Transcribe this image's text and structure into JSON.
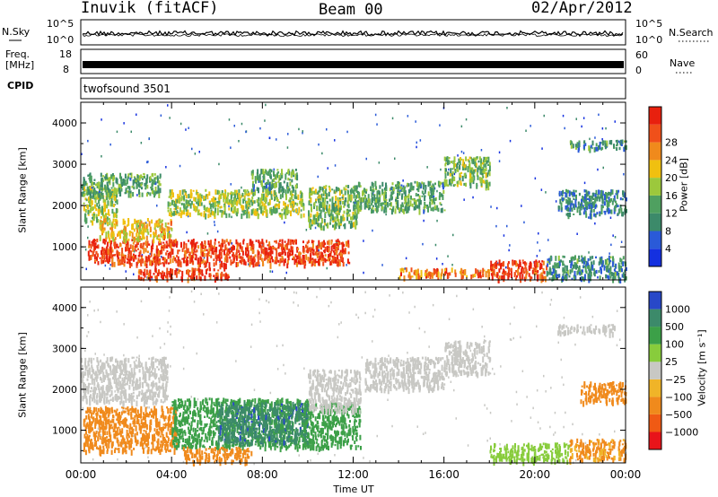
{
  "header": {
    "title": "Inuvik (fitACF)",
    "beam": "Beam 00",
    "date": "02/Apr/2012"
  },
  "strips": {
    "nsky_label": "N.Sky",
    "nsky_ticks": [
      "10^5",
      "10^0"
    ],
    "nsearch_label": "N.Search",
    "nsearch_ticks": [
      "10^5",
      "10^0"
    ],
    "freq_label_top": "Freq.",
    "freq_label_unit": "[MHz]",
    "freq_ticks": [
      "18",
      "8"
    ],
    "nave_label": "Nave",
    "nave_ticks": [
      "60",
      "0"
    ],
    "cpid_label": "CPID",
    "cpid_value": "twofsound 3501"
  },
  "colors": {
    "power": [
      "#1430e0",
      "#2a5ad8",
      "#3c8a6a",
      "#4fa060",
      "#9cc83c",
      "#f0c010",
      "#f08a1c",
      "#f0501a",
      "#e8200e"
    ],
    "velocity": [
      "#e8141a",
      "#f05a14",
      "#f08a1c",
      "#f0b428",
      "#c8c8c4",
      "#88cc3c",
      "#3ca048",
      "#3c8a6a",
      "#2848c8"
    ]
  },
  "chart_data": [
    {
      "type": "heatmap",
      "name": "power",
      "ylabel": "Slant Range [km]",
      "yticks": [
        "1000",
        "2000",
        "3000",
        "4000"
      ],
      "ylim": [
        200,
        4500
      ],
      "colorbar_label": "Power [dB]",
      "colorbar_ticks": [
        "4",
        "8",
        "12",
        "16",
        "20",
        "24",
        "28"
      ],
      "blobs": [
        {
          "t0": 0.1,
          "t1": 1.6,
          "r0": 1600,
          "r1": 2500,
          "v": 14
        },
        {
          "t0": 0.3,
          "t1": 11.8,
          "r0": 600,
          "r1": 1200,
          "v": 26
        },
        {
          "t0": 0.8,
          "t1": 4.0,
          "r0": 1200,
          "r1": 1700,
          "v": 18
        },
        {
          "t0": 0.0,
          "t1": 3.5,
          "r0": 2300,
          "r1": 2800,
          "v": 10
        },
        {
          "t0": 3.8,
          "t1": 9.8,
          "r0": 1800,
          "r1": 2400,
          "v": 14
        },
        {
          "t0": 7.5,
          "t1": 9.5,
          "r0": 2400,
          "r1": 2900,
          "v": 10
        },
        {
          "t0": 2.5,
          "t1": 6.5,
          "r0": 250,
          "r1": 500,
          "v": 26
        },
        {
          "t0": 10.0,
          "t1": 12.3,
          "r0": 1500,
          "r1": 2500,
          "v": 12
        },
        {
          "t0": 12.0,
          "t1": 16.0,
          "r0": 1900,
          "r1": 2600,
          "v": 10
        },
        {
          "t0": 14.0,
          "t1": 18.0,
          "r0": 300,
          "r1": 500,
          "v": 22
        },
        {
          "t0": 16.0,
          "t1": 18.0,
          "r0": 2500,
          "r1": 3200,
          "v": 12
        },
        {
          "t0": 18.0,
          "t1": 20.5,
          "r0": 250,
          "r1": 700,
          "v": 26
        },
        {
          "t0": 20.5,
          "t1": 24.0,
          "r0": 250,
          "r1": 800,
          "v": 8
        },
        {
          "t0": 21.0,
          "t1": 24.0,
          "r0": 1800,
          "r1": 2400,
          "v": 7
        },
        {
          "t0": 21.5,
          "t1": 24.0,
          "r0": 3400,
          "r1": 3600,
          "v": 8
        }
      ]
    },
    {
      "type": "heatmap",
      "name": "velocity",
      "ylabel": "Slant Range [km]",
      "yticks": [
        "1000",
        "2000",
        "3000",
        "4000"
      ],
      "ylim": [
        200,
        4500
      ],
      "xlabel": "Time UT",
      "xticks": [
        "00:00",
        "04:00",
        "08:00",
        "12:00",
        "16:00",
        "20:00",
        "00:00"
      ],
      "xlim": [
        0,
        24
      ],
      "colorbar_label": "Velocity [m s⁻¹]",
      "colorbar_ticks": [
        "1000",
        "500",
        "100",
        "25",
        "−25",
        "−100",
        "−500",
        "−1000"
      ],
      "blobs": [
        {
          "t0": 0.1,
          "t1": 4.2,
          "r0": 500,
          "r1": 1600,
          "v": -200
        },
        {
          "t0": 0.0,
          "t1": 3.8,
          "r0": 1700,
          "r1": 2800,
          "v": 0
        },
        {
          "t0": 4.0,
          "t1": 10.0,
          "r0": 600,
          "r1": 1800,
          "v": 300
        },
        {
          "t0": 6.0,
          "t1": 10.0,
          "r0": 700,
          "r1": 1700,
          "v": 800
        },
        {
          "t0": 9.8,
          "t1": 12.3,
          "r0": 600,
          "r1": 1700,
          "v": 250
        },
        {
          "t0": 10.0,
          "t1": 12.3,
          "r0": 1500,
          "r1": 2500,
          "v": 0
        },
        {
          "t0": 12.5,
          "t1": 16.0,
          "r0": 2000,
          "r1": 2800,
          "v": 0
        },
        {
          "t0": 16.0,
          "t1": 18.0,
          "r0": 2400,
          "r1": 3200,
          "v": 0
        },
        {
          "t0": 18.0,
          "t1": 21.5,
          "r0": 250,
          "r1": 700,
          "v": 60
        },
        {
          "t0": 21.5,
          "t1": 24.0,
          "r0": 300,
          "r1": 800,
          "v": -120
        },
        {
          "t0": 22.0,
          "t1": 24.0,
          "r0": 1700,
          "r1": 2200,
          "v": -200
        },
        {
          "t0": 21.0,
          "t1": 23.5,
          "r0": 3400,
          "r1": 3600,
          "v": 0
        },
        {
          "t0": 4.5,
          "t1": 7.5,
          "r0": 250,
          "r1": 600,
          "v": -150
        }
      ]
    }
  ]
}
